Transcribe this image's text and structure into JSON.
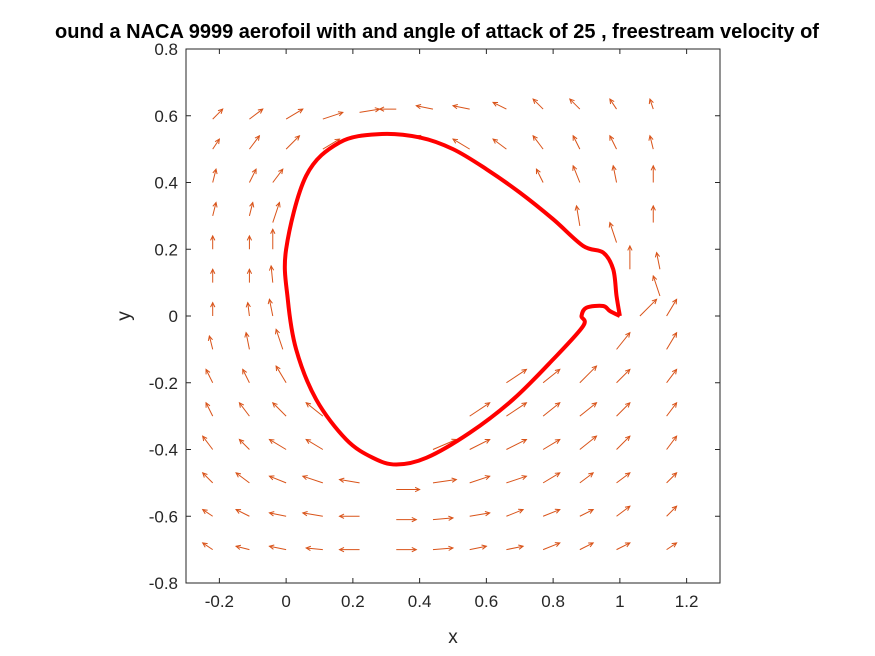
{
  "chart_data": {
    "type": "quiver",
    "title": "ound a NACA 9999 aerofoil with and angle of attack of 25 , freestream velocity of",
    "xlabel": "x",
    "ylabel": "y",
    "xlim": [
      -0.3,
      1.3
    ],
    "ylim": [
      -0.8,
      0.8
    ],
    "xticks": [
      "-0.2",
      "0",
      "0.2",
      "0.4",
      "0.6",
      "0.8",
      "1",
      "1.2"
    ],
    "yticks": [
      "0.8",
      "0.6",
      "0.4",
      "0.2",
      "0",
      "-0.2",
      "-0.4",
      "-0.6",
      "-0.8"
    ],
    "grid": false,
    "aerofoil_color": "#ff0000",
    "arrow_color": "#d95319",
    "aerofoil_outline": [
      [
        1.0,
        0.0
      ],
      [
        0.99,
        0.06
      ],
      [
        0.98,
        0.14
      ],
      [
        0.95,
        0.19
      ],
      [
        0.89,
        0.21
      ],
      [
        0.8,
        0.29
      ],
      [
        0.7,
        0.37
      ],
      [
        0.6,
        0.44
      ],
      [
        0.5,
        0.5
      ],
      [
        0.4,
        0.535
      ],
      [
        0.28,
        0.545
      ],
      [
        0.16,
        0.52
      ],
      [
        0.06,
        0.42
      ],
      [
        0.0,
        0.2
      ],
      [
        0.005,
        0.05
      ],
      [
        0.03,
        -0.1
      ],
      [
        0.09,
        -0.25
      ],
      [
        0.18,
        -0.37
      ],
      [
        0.26,
        -0.425
      ],
      [
        0.33,
        -0.445
      ],
      [
        0.42,
        -0.425
      ],
      [
        0.55,
        -0.35
      ],
      [
        0.68,
        -0.25
      ],
      [
        0.8,
        -0.13
      ],
      [
        0.89,
        -0.03
      ],
      [
        0.885,
        0.0
      ],
      [
        0.9,
        0.025
      ],
      [
        0.95,
        0.03
      ],
      [
        0.97,
        0.015
      ],
      [
        1.0,
        0.0
      ]
    ],
    "vectors": [
      [
        -0.22,
        0.59,
        0.03,
        0.03
      ],
      [
        -0.11,
        0.59,
        0.04,
        0.03
      ],
      [
        0.0,
        0.59,
        0.05,
        0.03
      ],
      [
        0.11,
        0.59,
        0.06,
        0.02
      ],
      [
        0.22,
        0.61,
        0.06,
        0.01
      ],
      [
        0.33,
        0.62,
        -0.05,
        0.0
      ],
      [
        0.44,
        0.62,
        -0.05,
        0.01
      ],
      [
        0.55,
        0.62,
        -0.05,
        0.01
      ],
      [
        0.66,
        0.62,
        -0.04,
        0.02
      ],
      [
        0.77,
        0.62,
        -0.03,
        0.03
      ],
      [
        0.88,
        0.62,
        -0.03,
        0.03
      ],
      [
        0.99,
        0.62,
        -0.02,
        0.03
      ],
      [
        1.1,
        0.62,
        -0.01,
        0.03
      ],
      [
        -0.22,
        0.5,
        0.02,
        0.03
      ],
      [
        -0.11,
        0.5,
        0.03,
        0.04
      ],
      [
        0.0,
        0.5,
        0.04,
        0.04
      ],
      [
        0.11,
        0.5,
        0.05,
        0.03
      ],
      [
        0.44,
        0.52,
        -0.05,
        0.02
      ],
      [
        0.55,
        0.5,
        -0.05,
        0.03
      ],
      [
        0.66,
        0.5,
        -0.04,
        0.03
      ],
      [
        0.77,
        0.5,
        -0.03,
        0.04
      ],
      [
        0.88,
        0.5,
        -0.02,
        0.04
      ],
      [
        0.99,
        0.5,
        -0.02,
        0.04
      ],
      [
        1.1,
        0.5,
        -0.01,
        0.04
      ],
      [
        -0.22,
        0.4,
        0.01,
        0.04
      ],
      [
        -0.11,
        0.4,
        0.02,
        0.04
      ],
      [
        -0.04,
        0.4,
        0.03,
        0.04
      ],
      [
        0.77,
        0.4,
        -0.02,
        0.04
      ],
      [
        0.88,
        0.4,
        -0.02,
        0.05
      ],
      [
        0.99,
        0.4,
        -0.01,
        0.05
      ],
      [
        1.1,
        0.4,
        0.0,
        0.05
      ],
      [
        -0.22,
        0.3,
        0.01,
        0.04
      ],
      [
        -0.11,
        0.3,
        0.01,
        0.04
      ],
      [
        -0.04,
        0.28,
        0.02,
        0.06
      ],
      [
        0.88,
        0.27,
        -0.01,
        0.06
      ],
      [
        0.99,
        0.22,
        -0.02,
        0.06
      ],
      [
        1.1,
        0.28,
        0.0,
        0.05
      ],
      [
        -0.22,
        0.2,
        0.0,
        0.04
      ],
      [
        -0.11,
        0.2,
        0.0,
        0.04
      ],
      [
        -0.04,
        0.2,
        0.0,
        0.06
      ],
      [
        1.03,
        0.14,
        0.0,
        0.07
      ],
      [
        1.12,
        0.14,
        -0.01,
        0.05
      ],
      [
        -0.22,
        0.1,
        0.0,
        0.04
      ],
      [
        -0.11,
        0.1,
        0.0,
        0.04
      ],
      [
        -0.04,
        0.1,
        -0.005,
        0.05
      ],
      [
        1.12,
        0.06,
        -0.02,
        0.06
      ],
      [
        -0.22,
        0.0,
        0.0,
        0.04
      ],
      [
        -0.11,
        0.0,
        -0.005,
        0.04
      ],
      [
        -0.04,
        0.0,
        -0.01,
        0.05
      ],
      [
        1.06,
        0.0,
        0.05,
        0.05
      ],
      [
        1.14,
        0.0,
        0.03,
        0.05
      ],
      [
        -0.22,
        -0.1,
        -0.01,
        0.04
      ],
      [
        -0.11,
        -0.1,
        -0.01,
        0.05
      ],
      [
        -0.01,
        -0.1,
        -0.02,
        0.06
      ],
      [
        0.99,
        -0.1,
        0.04,
        0.05
      ],
      [
        1.14,
        -0.1,
        0.03,
        0.05
      ],
      [
        -0.22,
        -0.2,
        -0.02,
        0.04
      ],
      [
        -0.11,
        -0.2,
        -0.02,
        0.04
      ],
      [
        0.0,
        -0.2,
        -0.03,
        0.05
      ],
      [
        0.66,
        -0.2,
        0.06,
        0.04
      ],
      [
        0.77,
        -0.2,
        0.05,
        0.04
      ],
      [
        0.88,
        -0.2,
        0.05,
        0.05
      ],
      [
        0.99,
        -0.2,
        0.04,
        0.04
      ],
      [
        1.14,
        -0.2,
        0.03,
        0.04
      ],
      [
        -0.22,
        -0.3,
        -0.02,
        0.04
      ],
      [
        -0.11,
        -0.3,
        -0.03,
        0.04
      ],
      [
        0.0,
        -0.3,
        -0.04,
        0.04
      ],
      [
        0.11,
        -0.3,
        -0.05,
        0.04
      ],
      [
        0.55,
        -0.3,
        0.06,
        0.04
      ],
      [
        0.66,
        -0.3,
        0.06,
        0.04
      ],
      [
        0.77,
        -0.3,
        0.05,
        0.04
      ],
      [
        0.88,
        -0.3,
        0.05,
        0.04
      ],
      [
        0.99,
        -0.3,
        0.04,
        0.04
      ],
      [
        1.14,
        -0.3,
        0.03,
        0.04
      ],
      [
        -0.22,
        -0.4,
        -0.03,
        0.04
      ],
      [
        -0.11,
        -0.4,
        -0.03,
        0.03
      ],
      [
        0.0,
        -0.4,
        -0.05,
        0.03
      ],
      [
        0.11,
        -0.4,
        -0.05,
        0.03
      ],
      [
        0.44,
        -0.4,
        0.07,
        0.03
      ],
      [
        0.55,
        -0.4,
        0.06,
        0.03
      ],
      [
        0.66,
        -0.4,
        0.06,
        0.03
      ],
      [
        0.77,
        -0.4,
        0.05,
        0.03
      ],
      [
        0.88,
        -0.4,
        0.05,
        0.04
      ],
      [
        0.99,
        -0.4,
        0.04,
        0.04
      ],
      [
        1.14,
        -0.4,
        0.03,
        0.04
      ],
      [
        -0.22,
        -0.5,
        -0.03,
        0.03
      ],
      [
        -0.11,
        -0.5,
        -0.04,
        0.03
      ],
      [
        0.0,
        -0.5,
        -0.05,
        0.02
      ],
      [
        0.11,
        -0.5,
        -0.06,
        0.02
      ],
      [
        0.22,
        -0.5,
        -0.06,
        0.01
      ],
      [
        0.33,
        -0.52,
        0.07,
        0.0
      ],
      [
        0.44,
        -0.5,
        0.07,
        0.01
      ],
      [
        0.55,
        -0.5,
        0.06,
        0.02
      ],
      [
        0.66,
        -0.5,
        0.06,
        0.02
      ],
      [
        0.77,
        -0.5,
        0.05,
        0.03
      ],
      [
        0.88,
        -0.5,
        0.04,
        0.03
      ],
      [
        0.99,
        -0.5,
        0.04,
        0.03
      ],
      [
        1.14,
        -0.5,
        0.03,
        0.03
      ],
      [
        -0.22,
        -0.6,
        -0.03,
        0.02
      ],
      [
        -0.11,
        -0.6,
        -0.04,
        0.02
      ],
      [
        0.0,
        -0.6,
        -0.05,
        0.01
      ],
      [
        0.11,
        -0.6,
        -0.06,
        0.01
      ],
      [
        0.22,
        -0.6,
        -0.06,
        0.0
      ],
      [
        0.33,
        -0.61,
        0.06,
        0.0
      ],
      [
        0.44,
        -0.61,
        0.06,
        0.005
      ],
      [
        0.55,
        -0.6,
        0.06,
        0.01
      ],
      [
        0.66,
        -0.6,
        0.05,
        0.02
      ],
      [
        0.77,
        -0.6,
        0.05,
        0.02
      ],
      [
        0.88,
        -0.6,
        0.04,
        0.02
      ],
      [
        0.99,
        -0.6,
        0.04,
        0.03
      ],
      [
        1.14,
        -0.6,
        0.03,
        0.03
      ],
      [
        -0.22,
        -0.7,
        -0.03,
        0.02
      ],
      [
        -0.11,
        -0.7,
        -0.04,
        0.01
      ],
      [
        0.0,
        -0.7,
        -0.05,
        0.01
      ],
      [
        0.11,
        -0.7,
        -0.05,
        0.005
      ],
      [
        0.22,
        -0.7,
        -0.06,
        0.0
      ],
      [
        0.33,
        -0.7,
        0.06,
        0.0
      ],
      [
        0.44,
        -0.7,
        0.06,
        0.005
      ],
      [
        0.55,
        -0.7,
        0.05,
        0.01
      ],
      [
        0.66,
        -0.7,
        0.05,
        0.01
      ],
      [
        0.77,
        -0.7,
        0.05,
        0.02
      ],
      [
        0.88,
        -0.7,
        0.04,
        0.02
      ],
      [
        0.99,
        -0.7,
        0.04,
        0.02
      ],
      [
        1.14,
        -0.7,
        0.03,
        0.02
      ]
    ]
  }
}
